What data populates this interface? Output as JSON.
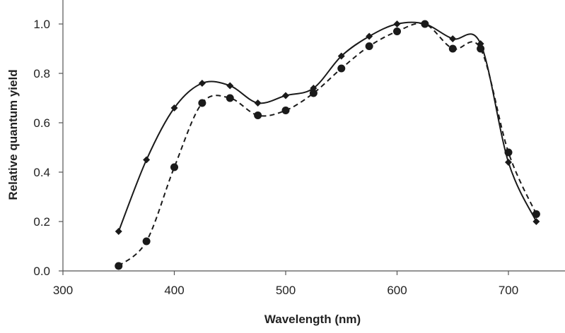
{
  "chart_data": {
    "type": "line",
    "title": "",
    "xlabel": "Wavelength (nm)",
    "ylabel": "Relative quantum yield",
    "xlim": [
      300,
      750
    ],
    "ylim": [
      0,
      1.1
    ],
    "x_ticks": [
      300,
      400,
      500,
      600,
      700
    ],
    "y_ticks": [
      0.0,
      0.2,
      0.4,
      0.6,
      0.8,
      1.0
    ],
    "x_tick_labels": [
      "300",
      "400",
      "500",
      "600",
      "700"
    ],
    "y_tick_labels": [
      "0.0",
      "0.2",
      "0.4",
      "0.6",
      "0.8",
      "1.0"
    ],
    "grid": false,
    "legend": "none",
    "series": [
      {
        "marker": "diamond",
        "line_style": "solid",
        "color": "#1a1a1a",
        "x": [
          350,
          375,
          400,
          425,
          450,
          475,
          500,
          525,
          550,
          575,
          600,
          625,
          650,
          675,
          700,
          725
        ],
        "y": [
          0.16,
          0.45,
          0.66,
          0.76,
          0.75,
          0.68,
          0.71,
          0.74,
          0.87,
          0.95,
          1.0,
          1.0,
          0.94,
          0.92,
          0.44,
          0.2
        ]
      },
      {
        "marker": "circle",
        "line_style": "dashed",
        "color": "#1a1a1a",
        "x": [
          350,
          375,
          400,
          425,
          450,
          475,
          500,
          525,
          550,
          575,
          600,
          625,
          650,
          675,
          700,
          725
        ],
        "y": [
          0.02,
          0.12,
          0.42,
          0.68,
          0.7,
          0.63,
          0.65,
          0.72,
          0.82,
          0.91,
          0.97,
          1.0,
          0.9,
          0.9,
          0.48,
          0.23
        ]
      }
    ]
  }
}
